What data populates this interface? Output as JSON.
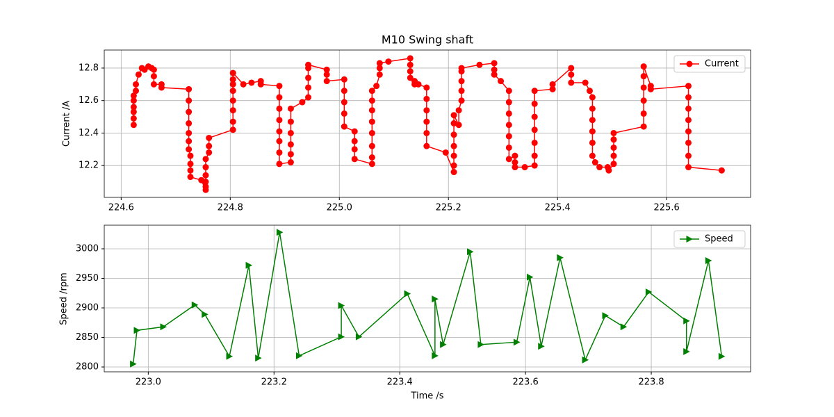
{
  "chart_data": [
    {
      "type": "line",
      "title": "M10 Swing shaft",
      "ylabel": "Current /A",
      "x": [
        224.623,
        224.623,
        224.623,
        224.623,
        224.623,
        224.623,
        224.627,
        224.627,
        224.632,
        224.638,
        224.643,
        224.65,
        224.656,
        224.66,
        224.66,
        224.66,
        224.674,
        224.674,
        224.724,
        224.724,
        224.724,
        224.724,
        224.724,
        224.724,
        224.724,
        224.727,
        224.727,
        224.727,
        224.727,
        224.747,
        224.755,
        224.755,
        224.755,
        224.755,
        224.755,
        224.755,
        224.761,
        224.761,
        224.761,
        224.805,
        224.805,
        224.805,
        224.805,
        224.805,
        224.805,
        224.805,
        224.805,
        224.824,
        224.839,
        224.856,
        224.856,
        224.89,
        224.89,
        224.89,
        224.89,
        224.89,
        224.89,
        224.89,
        224.89,
        224.911,
        224.911,
        224.911,
        224.911,
        224.911,
        224.911,
        224.932,
        224.943,
        224.943,
        224.943,
        224.943,
        224.943,
        224.977,
        224.977,
        224.977,
        225.009,
        225.009,
        225.009,
        225.009,
        225.009,
        225.028,
        225.028,
        225.028,
        225.028,
        225.06,
        225.06,
        225.06,
        225.06,
        225.06,
        225.06,
        225.06,
        225.06,
        225.068,
        225.074,
        225.074,
        225.074,
        225.09,
        225.13,
        225.13,
        225.13,
        225.13,
        225.138,
        225.138,
        225.145,
        225.16,
        225.16,
        225.16,
        225.16,
        225.16,
        225.16,
        225.195,
        225.21,
        225.21,
        225.21,
        225.21,
        225.21,
        225.21,
        225.21,
        225.219,
        225.219,
        225.224,
        225.224,
        225.224,
        225.224,
        225.224,
        225.257,
        225.284,
        225.284,
        225.284,
        225.296,
        225.311,
        225.311,
        225.311,
        225.311,
        225.311,
        225.311,
        225.311,
        225.322,
        225.322,
        225.322,
        225.34,
        225.358,
        225.358,
        225.358,
        225.358,
        225.358,
        225.358,
        225.358,
        225.391,
        225.391,
        225.425,
        225.425,
        225.425,
        225.451,
        225.459,
        225.464,
        225.464,
        225.464,
        225.464,
        225.464,
        225.464,
        225.469,
        225.477,
        225.492,
        225.494,
        225.503,
        225.503,
        225.503,
        225.503,
        225.503,
        225.558,
        225.558,
        225.558,
        225.558,
        225.558,
        225.558,
        225.571,
        225.571,
        225.64,
        225.64,
        225.64,
        225.64,
        225.64,
        225.64,
        225.64,
        225.64,
        225.701
      ],
      "series": [
        {
          "name": "Current",
          "color": "#ff0000",
          "marker": "o",
          "values": [
            12.45,
            12.49,
            12.53,
            12.56,
            12.6,
            12.63,
            12.66,
            12.7,
            12.76,
            12.8,
            12.79,
            12.81,
            12.8,
            12.79,
            12.75,
            12.7,
            12.7,
            12.68,
            12.67,
            12.6,
            12.53,
            12.46,
            12.4,
            12.35,
            12.3,
            12.26,
            12.21,
            12.17,
            12.13,
            12.11,
            12.05,
            12.07,
            12.1,
            12.14,
            12.19,
            12.24,
            12.28,
            12.32,
            12.37,
            12.42,
            12.47,
            12.54,
            12.6,
            12.66,
            12.7,
            12.73,
            12.77,
            12.7,
            12.71,
            12.72,
            12.7,
            12.69,
            12.62,
            12.55,
            12.48,
            12.41,
            12.35,
            12.28,
            12.21,
            12.22,
            12.27,
            12.33,
            12.4,
            12.47,
            12.55,
            12.59,
            12.62,
            12.68,
            12.74,
            12.8,
            12.82,
            12.79,
            12.76,
            12.72,
            12.73,
            12.66,
            12.59,
            12.52,
            12.44,
            12.41,
            12.35,
            12.3,
            12.24,
            12.21,
            12.25,
            12.32,
            12.4,
            12.47,
            12.54,
            12.6,
            12.66,
            12.69,
            12.76,
            12.8,
            12.83,
            12.84,
            12.86,
            12.82,
            12.78,
            12.74,
            12.72,
            12.7,
            12.7,
            12.68,
            12.61,
            12.54,
            12.47,
            12.4,
            12.32,
            12.28,
            12.16,
            12.2,
            12.26,
            12.32,
            12.39,
            12.46,
            12.51,
            12.45,
            12.54,
            12.6,
            12.66,
            12.72,
            12.78,
            12.8,
            12.82,
            12.83,
            12.79,
            12.76,
            12.72,
            12.66,
            12.59,
            12.52,
            12.45,
            12.38,
            12.31,
            12.24,
            12.26,
            12.22,
            12.19,
            12.19,
            12.2,
            12.26,
            12.34,
            12.42,
            12.5,
            12.58,
            12.66,
            12.67,
            12.7,
            12.8,
            12.76,
            12.71,
            12.71,
            12.66,
            12.62,
            12.55,
            12.48,
            12.41,
            12.34,
            12.26,
            12.22,
            12.19,
            12.19,
            12.17,
            12.21,
            12.26,
            12.31,
            12.36,
            12.4,
            12.44,
            12.52,
            12.6,
            12.68,
            12.75,
            12.81,
            12.69,
            12.67,
            12.69,
            12.62,
            12.55,
            12.48,
            12.41,
            12.34,
            12.26,
            12.19,
            12.17
          ]
        }
      ],
      "xlim": [
        224.569,
        225.754
      ],
      "ylim": [
        12.004,
        12.911
      ],
      "xticks": [
        224.6,
        224.8,
        {
          "value": 225,
          "label": "225.0"
        },
        225.2,
        225.4,
        225.6
      ],
      "yticks": [
        12.2,
        12.4,
        12.6,
        12.8
      ],
      "grid": true,
      "legend": "upper right"
    },
    {
      "type": "line",
      "xlabel": "Time /s",
      "ylabel": "Speed /rpm",
      "x": [
        222.976,
        222.982,
        223.024,
        223.074,
        223.09,
        223.129,
        223.16,
        223.175,
        223.209,
        223.24,
        223.307,
        223.307,
        223.335,
        223.412,
        223.456,
        223.456,
        223.469,
        223.512,
        223.529,
        223.586,
        223.607,
        223.625,
        223.655,
        223.695,
        223.727,
        223.756,
        223.796,
        223.856,
        223.856,
        223.891,
        223.912
      ],
      "series": [
        {
          "name": "Speed",
          "color": "#008000",
          "marker": ">",
          "values": [
            2805,
            2862,
            2868,
            2905,
            2889,
            2818,
            2972,
            2815,
            3028,
            2819,
            2851,
            2904,
            2851,
            2924,
            2819,
            2915,
            2838,
            2995,
            2838,
            2842,
            2952,
            2835,
            2985,
            2812,
            2887,
            2868,
            2927,
            2878,
            2826,
            2980,
            2818
          ]
        }
      ],
      "xlim": [
        222.93,
        223.958
      ],
      "ylim": [
        2791.8,
        3040
      ],
      "xticks": [
        {
          "value": 223,
          "label": "223.0"
        },
        223.2,
        223.4,
        223.6,
        223.8
      ],
      "yticks": [
        2800,
        2850,
        2900,
        2950,
        3000
      ],
      "grid": true,
      "legend": "upper right"
    }
  ]
}
